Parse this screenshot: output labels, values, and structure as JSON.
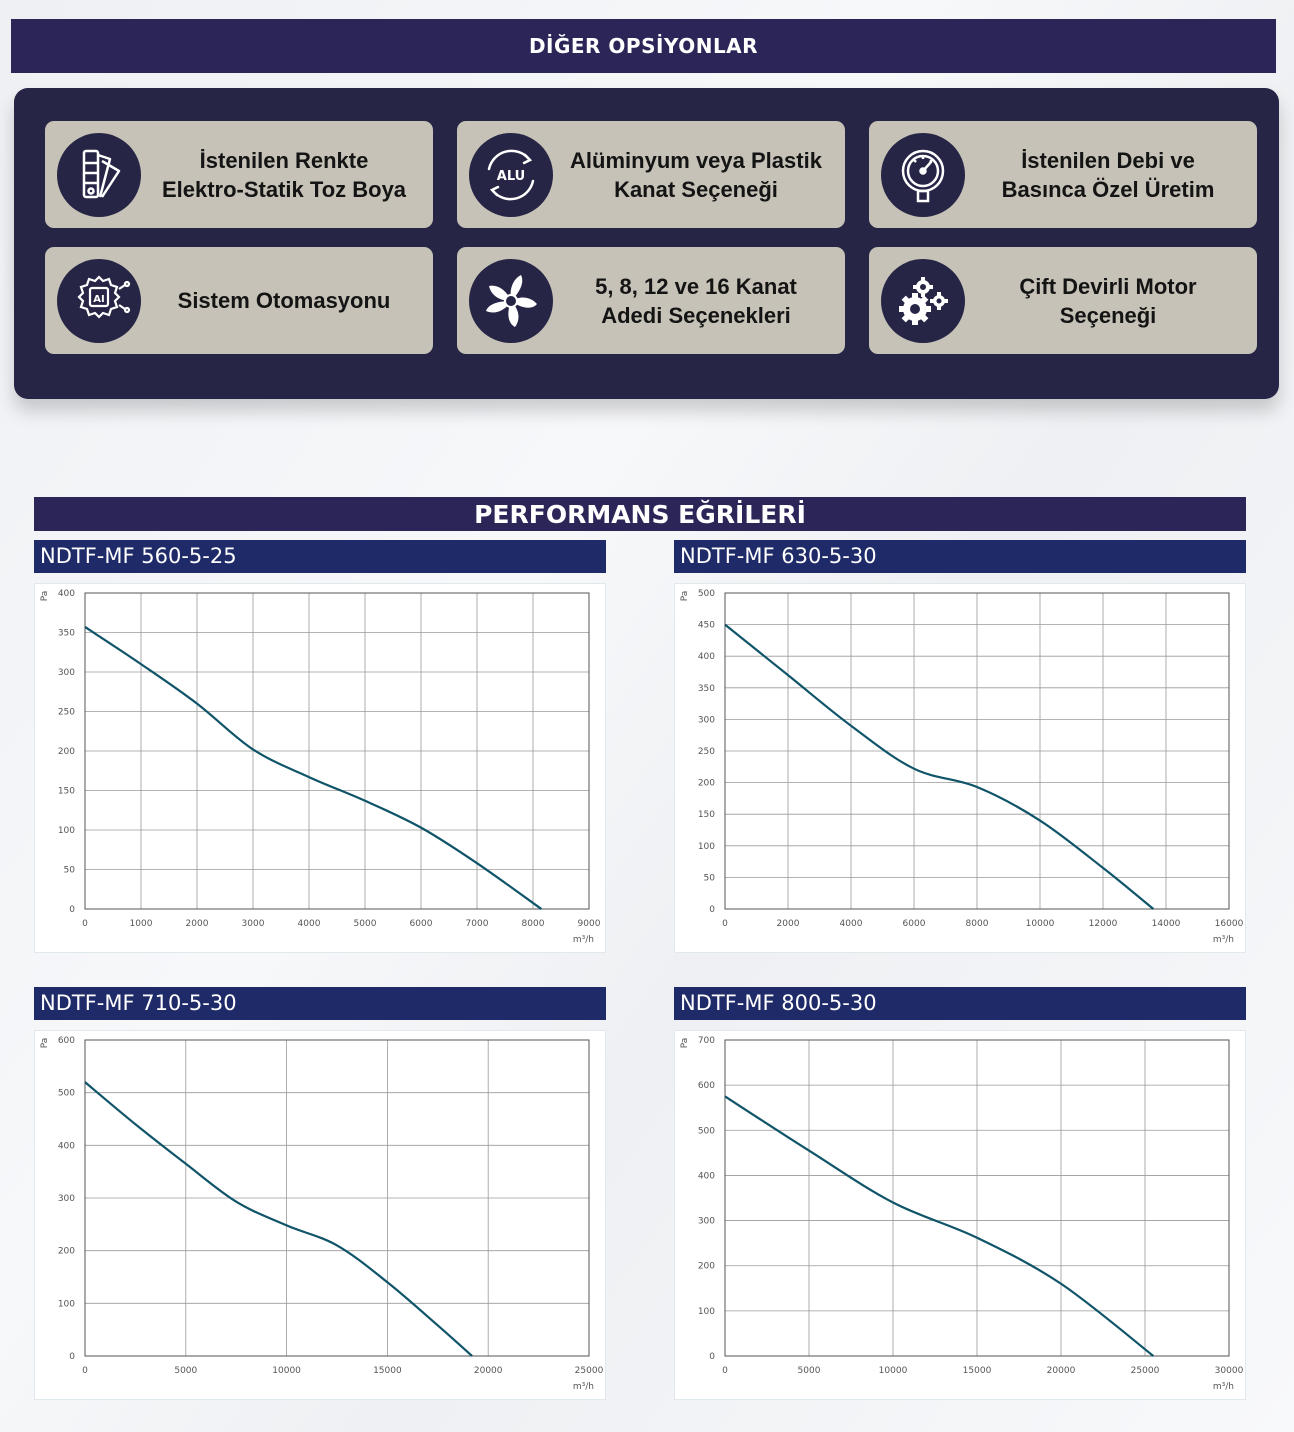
{
  "options_section": {
    "title": "DİĞER OPSİYONLAR",
    "items": [
      {
        "icon": "color-swatch-icon",
        "line1": "İstenilen Renkte",
        "line2": "Elektro-Statik Toz Boya"
      },
      {
        "icon": "alu-icon",
        "icon_label": "ALU",
        "line1": "Alüminyum veya Plastik",
        "line2": "Kanat Seçeneği"
      },
      {
        "icon": "pressure-gauge-icon",
        "line1": "İstenilen Debi ve",
        "line2": "Basınca Özel Üretim"
      },
      {
        "icon": "ai-chip-gear-icon",
        "icon_label": "AI",
        "line1": "Sistem Otomasyonu",
        "line2": ""
      },
      {
        "icon": "fan-blade-icon",
        "line1": "5, 8, 12 ve 16 Kanat",
        "line2": "Adedi Seçenekleri"
      },
      {
        "icon": "gears-icon",
        "line1": "Çift Devirli Motor",
        "line2": "Seçeneği"
      }
    ]
  },
  "performance_section": {
    "title": "PERFORMANS EĞRİLERİ"
  },
  "colors": {
    "banner": "#2b2558",
    "panel": "#262545",
    "card": "#c6c2b7",
    "chart_title": "#1f2a68",
    "curve": "#0f5468"
  },
  "chart_data": [
    {
      "type": "line",
      "title": "NDTF-MF 560-5-25",
      "xlabel": "m³/h",
      "ylabel": "Pa",
      "xlim": [
        0,
        9000
      ],
      "ylim": [
        0,
        400
      ],
      "grid": true,
      "xticks": [
        0,
        1000,
        2000,
        3000,
        4000,
        5000,
        6000,
        7000,
        8000,
        9000
      ],
      "yticks": [
        0,
        50,
        100,
        150,
        200,
        250,
        300,
        350,
        400
      ],
      "x": [
        0,
        1000,
        2000,
        3000,
        4000,
        5000,
        6000,
        7000,
        8150
      ],
      "y": [
        357,
        310,
        260,
        202,
        167,
        137,
        103,
        58,
        0
      ]
    },
    {
      "type": "line",
      "title": "NDTF-MF 630-5-30",
      "xlabel": "m³/h",
      "ylabel": "Pa",
      "xlim": [
        0,
        16000
      ],
      "ylim": [
        0,
        500
      ],
      "grid": true,
      "xticks": [
        0,
        2000,
        4000,
        6000,
        8000,
        10000,
        12000,
        14000,
        16000
      ],
      "yticks": [
        0,
        50,
        100,
        150,
        200,
        250,
        300,
        350,
        400,
        450,
        500
      ],
      "x": [
        0,
        2000,
        4000,
        6000,
        8000,
        10000,
        12000,
        13600
      ],
      "y": [
        450,
        370,
        290,
        222,
        193,
        140,
        65,
        0
      ]
    },
    {
      "type": "line",
      "title": "NDTF-MF 710-5-30",
      "xlabel": "m³/h",
      "ylabel": "Pa",
      "xlim": [
        0,
        25000
      ],
      "ylim": [
        0,
        600
      ],
      "grid": true,
      "xticks": [
        0,
        5000,
        10000,
        15000,
        20000,
        25000
      ],
      "yticks": [
        0,
        100,
        200,
        300,
        400,
        500,
        600
      ],
      "x": [
        0,
        2500,
        5000,
        7500,
        10000,
        12500,
        15000,
        17500,
        19200
      ],
      "y": [
        520,
        440,
        365,
        293,
        248,
        210,
        140,
        58,
        0
      ]
    },
    {
      "type": "line",
      "title": "NDTF-MF 800-5-30",
      "xlabel": "m³/h",
      "ylabel": "Pa",
      "xlim": [
        0,
        30000
      ],
      "ylim": [
        0,
        700
      ],
      "grid": true,
      "xticks": [
        0,
        5000,
        10000,
        15000,
        20000,
        25000,
        30000
      ],
      "yticks": [
        0,
        100,
        200,
        300,
        400,
        500,
        600,
        700
      ],
      "x": [
        0,
        5000,
        10000,
        15000,
        20000,
        25500
      ],
      "y": [
        575,
        455,
        340,
        262,
        160,
        0
      ]
    }
  ]
}
